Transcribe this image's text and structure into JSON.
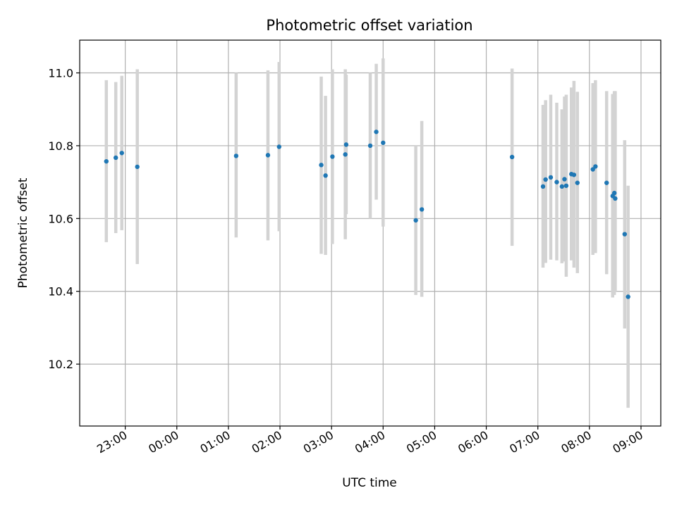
{
  "chart_data": {
    "type": "scatter",
    "title": "Photometric offset variation",
    "xlabel": "UTC time",
    "ylabel": "Photometric offset",
    "x_axis_kind": "datetime",
    "xlim": [
      "22:07",
      "09:23"
    ],
    "ylim": [
      10.03,
      11.09
    ],
    "x_tick_labels": [
      "23:00",
      "00:00",
      "01:00",
      "02:00",
      "03:00",
      "04:00",
      "05:00",
      "06:00",
      "07:00",
      "08:00",
      "09:00"
    ],
    "y_ticks": [
      10.2,
      10.4,
      10.6,
      10.8,
      11.0
    ],
    "y_tick_labels": [
      "10.2",
      "10.4",
      "10.6",
      "10.8",
      "11.0"
    ],
    "grid": true,
    "marker_color": "#1f77b4",
    "errorbar_color": "#d3d3d3",
    "points": [
      {
        "t": "22:38",
        "y": 10.757,
        "lo": 10.535,
        "hi": 10.98
      },
      {
        "t": "22:49",
        "y": 10.767,
        "lo": 10.56,
        "hi": 10.975
      },
      {
        "t": "22:56",
        "y": 10.78,
        "lo": 10.568,
        "hi": 10.992
      },
      {
        "t": "23:14",
        "y": 10.742,
        "lo": 10.475,
        "hi": 11.01
      },
      {
        "t": "01:09",
        "y": 10.772,
        "lo": 10.548,
        "hi": 11.0
      },
      {
        "t": "01:46",
        "y": 10.774,
        "lo": 10.54,
        "hi": 11.007
      },
      {
        "t": "01:59",
        "y": 10.797,
        "lo": 10.565,
        "hi": 11.03
      },
      {
        "t": "02:48",
        "y": 10.747,
        "lo": 10.503,
        "hi": 10.99
      },
      {
        "t": "02:53",
        "y": 10.718,
        "lo": 10.5,
        "hi": 10.937
      },
      {
        "t": "03:01",
        "y": 10.77,
        "lo": 10.53,
        "hi": 11.01
      },
      {
        "t": "03:16",
        "y": 10.776,
        "lo": 10.543,
        "hi": 11.01
      },
      {
        "t": "03:17",
        "y": 10.803,
        "lo": 10.612,
        "hi": 10.995
      },
      {
        "t": "03:45",
        "y": 10.8,
        "lo": 10.6,
        "hi": 11.0
      },
      {
        "t": "03:52",
        "y": 10.838,
        "lo": 10.652,
        "hi": 11.025
      },
      {
        "t": "04:00",
        "y": 10.808,
        "lo": 10.578,
        "hi": 11.04
      },
      {
        "t": "04:38",
        "y": 10.595,
        "lo": 10.39,
        "hi": 10.8
      },
      {
        "t": "04:45",
        "y": 10.625,
        "lo": 10.385,
        "hi": 10.868
      },
      {
        "t": "06:30",
        "y": 10.769,
        "lo": 10.525,
        "hi": 11.012
      },
      {
        "t": "07:06",
        "y": 10.688,
        "lo": 10.465,
        "hi": 10.912
      },
      {
        "t": "07:09",
        "y": 10.707,
        "lo": 10.478,
        "hi": 10.925
      },
      {
        "t": "07:15",
        "y": 10.713,
        "lo": 10.487,
        "hi": 10.94
      },
      {
        "t": "07:22",
        "y": 10.7,
        "lo": 10.485,
        "hi": 10.918
      },
      {
        "t": "07:28",
        "y": 10.688,
        "lo": 10.477,
        "hi": 10.9
      },
      {
        "t": "07:31",
        "y": 10.708,
        "lo": 10.482,
        "hi": 10.935
      },
      {
        "t": "07:33",
        "y": 10.69,
        "lo": 10.44,
        "hi": 10.94
      },
      {
        "t": "07:39",
        "y": 10.722,
        "lo": 10.485,
        "hi": 10.96
      },
      {
        "t": "07:42",
        "y": 10.72,
        "lo": 10.465,
        "hi": 10.978
      },
      {
        "t": "07:46",
        "y": 10.698,
        "lo": 10.45,
        "hi": 10.948
      },
      {
        "t": "08:04",
        "y": 10.735,
        "lo": 10.5,
        "hi": 10.972
      },
      {
        "t": "08:07",
        "y": 10.743,
        "lo": 10.505,
        "hi": 10.98
      },
      {
        "t": "08:20",
        "y": 10.698,
        "lo": 10.447,
        "hi": 10.95
      },
      {
        "t": "08:27",
        "y": 10.662,
        "lo": 10.383,
        "hi": 10.942
      },
      {
        "t": "08:29",
        "y": 10.67,
        "lo": 10.39,
        "hi": 10.95
      },
      {
        "t": "08:30",
        "y": 10.655,
        "lo": 10.4,
        "hi": 10.95
      },
      {
        "t": "08:41",
        "y": 10.557,
        "lo": 10.298,
        "hi": 10.815
      },
      {
        "t": "08:45",
        "y": 10.385,
        "lo": 10.08,
        "hi": 10.69
      }
    ]
  }
}
